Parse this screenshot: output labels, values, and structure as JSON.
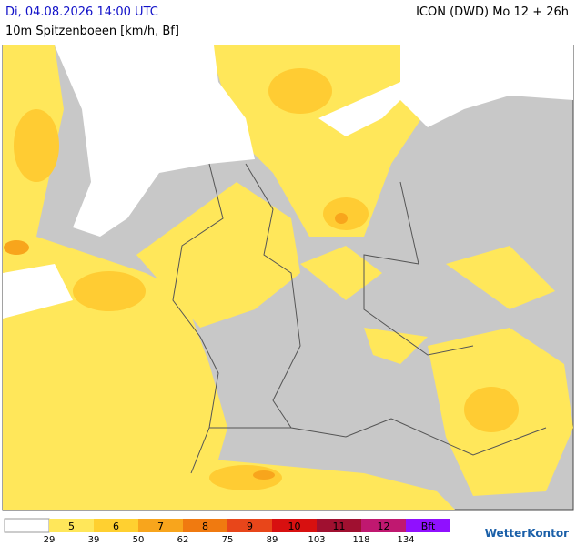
{
  "header": {
    "date": "Di, 04.08.2026 14:00 UTC",
    "parameter": "10m Spitzenboeen [km/h, Bf]",
    "model": "ICON (DWD) Mo 12 + 26h"
  },
  "legend": {
    "beaufort": [
      5,
      6,
      7,
      8,
      9,
      10,
      11,
      12,
      "Bft"
    ],
    "kmh": [
      29,
      39,
      50,
      62,
      75,
      89,
      103,
      118,
      134
    ]
  },
  "logo": "WetterKontor"
}
